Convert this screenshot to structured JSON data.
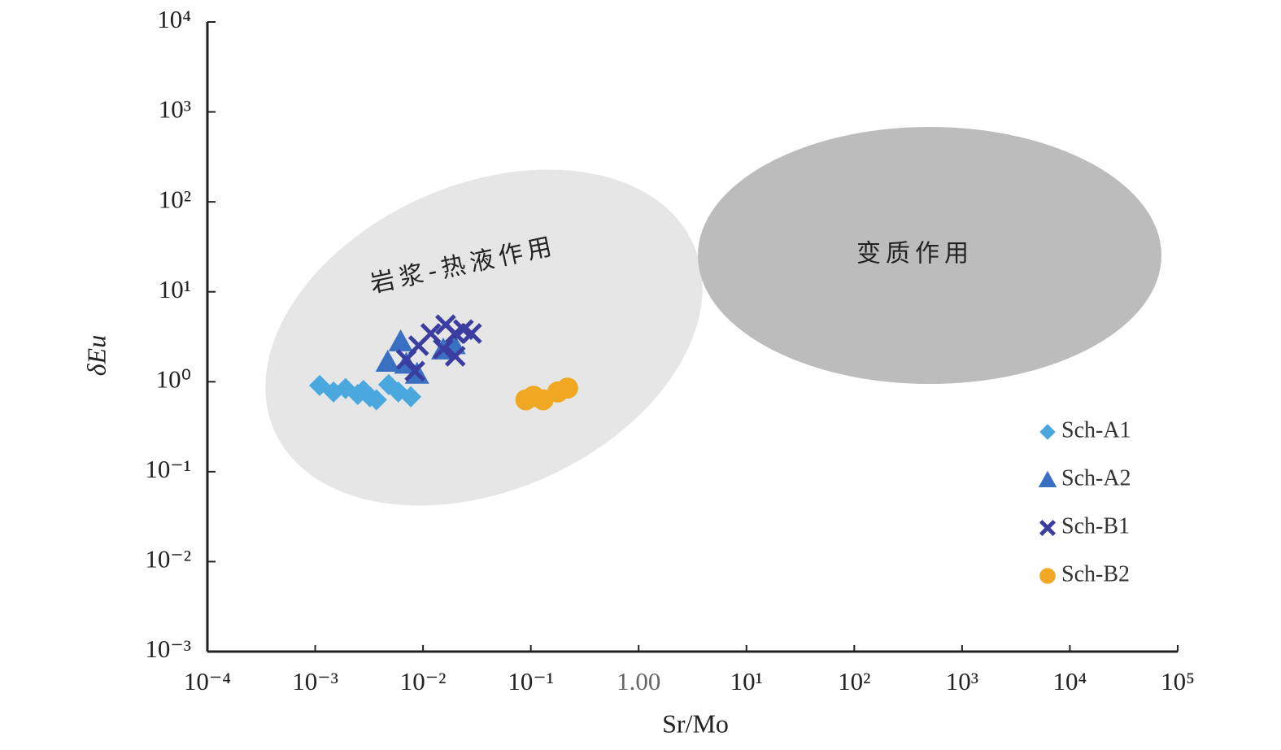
{
  "chart_data": {
    "type": "scatter",
    "x_label": "Sr/Mo",
    "y_label": "δEu",
    "log_x": true,
    "log_y": true,
    "xlim": [
      0.0001,
      100000
    ],
    "ylim": [
      0.001,
      10000
    ],
    "xticks": [
      {
        "value": 0.0001,
        "label": "10⁻⁴"
      },
      {
        "value": 0.001,
        "label": "10⁻³"
      },
      {
        "value": 0.01,
        "label": "10⁻²"
      },
      {
        "value": 0.1,
        "label": "10⁻¹"
      },
      {
        "value": 1,
        "label": "1.00"
      },
      {
        "value": 10,
        "label": "10¹"
      },
      {
        "value": 100,
        "label": "10²"
      },
      {
        "value": 1000,
        "label": "10³"
      },
      {
        "value": 10000,
        "label": "10⁴"
      },
      {
        "value": 100000,
        "label": "10⁵"
      }
    ],
    "yticks": [
      {
        "value": 0.001,
        "label": "10⁻³"
      },
      {
        "value": 0.01,
        "label": "10⁻²"
      },
      {
        "value": 0.1,
        "label": "10⁻¹"
      },
      {
        "value": 1,
        "label": "10⁰"
      },
      {
        "value": 10,
        "label": "10¹"
      },
      {
        "value": 100,
        "label": "10²"
      },
      {
        "value": 1000,
        "label": "10³"
      },
      {
        "value": 10000,
        "label": "10⁴"
      }
    ],
    "annotations": [
      "岩浆-热液作用",
      "变质作用"
    ],
    "legend": "lower right",
    "series": [
      {
        "name": "Sch-A1",
        "color": "#4aa8df",
        "marker": "diamond",
        "x": [
          0.0011,
          0.00148,
          0.00191,
          0.00248,
          0.00322,
          0.0037,
          0.0048,
          0.0059,
          0.0077,
          0.0028
        ],
        "y": [
          0.91,
          0.77,
          0.84,
          0.72,
          0.68,
          0.63,
          0.93,
          0.77,
          0.68,
          0.8
        ]
      },
      {
        "name": "Sch-A2",
        "color": "#3a70c2",
        "marker": "triangle",
        "x": [
          0.0062,
          0.0047,
          0.0088,
          0.007,
          0.0154,
          0.0192
        ],
        "y": [
          2.8,
          1.66,
          1.22,
          1.58,
          2.27,
          2.6
        ]
      },
      {
        "name": "Sch-B1",
        "color": "#3b3ea0",
        "marker": "x",
        "x": [
          0.007,
          0.0084,
          0.0091,
          0.0118,
          0.0162,
          0.0199,
          0.0237,
          0.0282,
          0.0199,
          0.0154
        ],
        "y": [
          1.77,
          1.31,
          2.52,
          3.44,
          4.3,
          3.44,
          3.8,
          3.44,
          1.92,
          2.32
        ]
      },
      {
        "name": "Sch-B2",
        "color": "#f0a823",
        "marker": "circle",
        "x": [
          0.09,
          0.106,
          0.13,
          0.178,
          0.219
        ],
        "y": [
          0.63,
          0.69,
          0.63,
          0.77,
          0.85
        ]
      }
    ]
  }
}
